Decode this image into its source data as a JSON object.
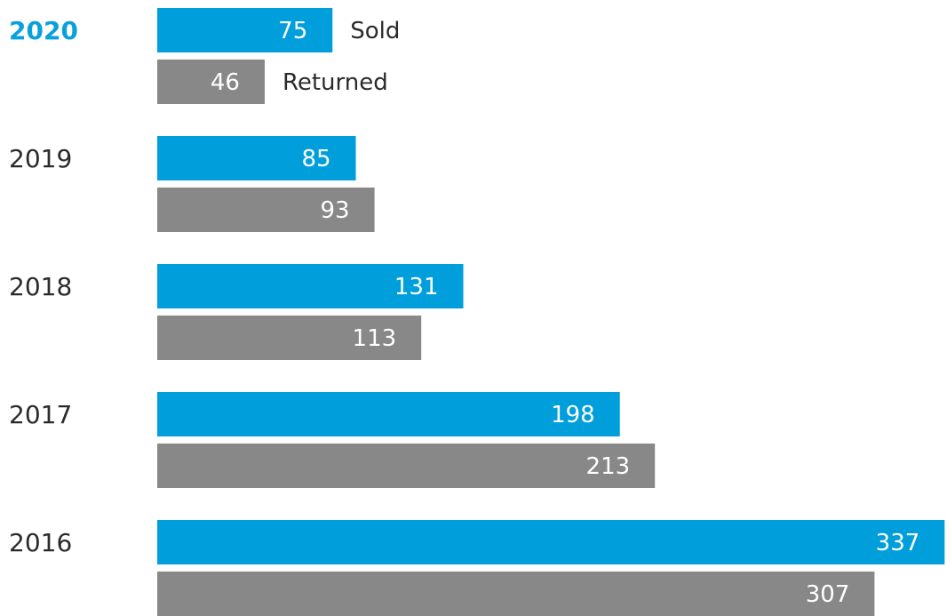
{
  "chart_data": {
    "type": "bar",
    "orientation": "horizontal",
    "categories": [
      "2020",
      "2019",
      "2018",
      "2017",
      "2016"
    ],
    "highlight_category": "2020",
    "series": [
      {
        "name": "Sold",
        "values": [
          75,
          85,
          131,
          198,
          337
        ],
        "color": "#009fdc"
      },
      {
        "name": "Returned",
        "values": [
          46,
          93,
          113,
          213,
          307
        ],
        "color": "#888888"
      }
    ],
    "title": "",
    "xlabel": "",
    "ylabel": "",
    "grid": false,
    "legend": "inline-after-first-category-bars",
    "colors": {
      "highlight_label": "#0aa0dc",
      "label": "#2b2b2b",
      "value_text": "#ffffff"
    }
  }
}
